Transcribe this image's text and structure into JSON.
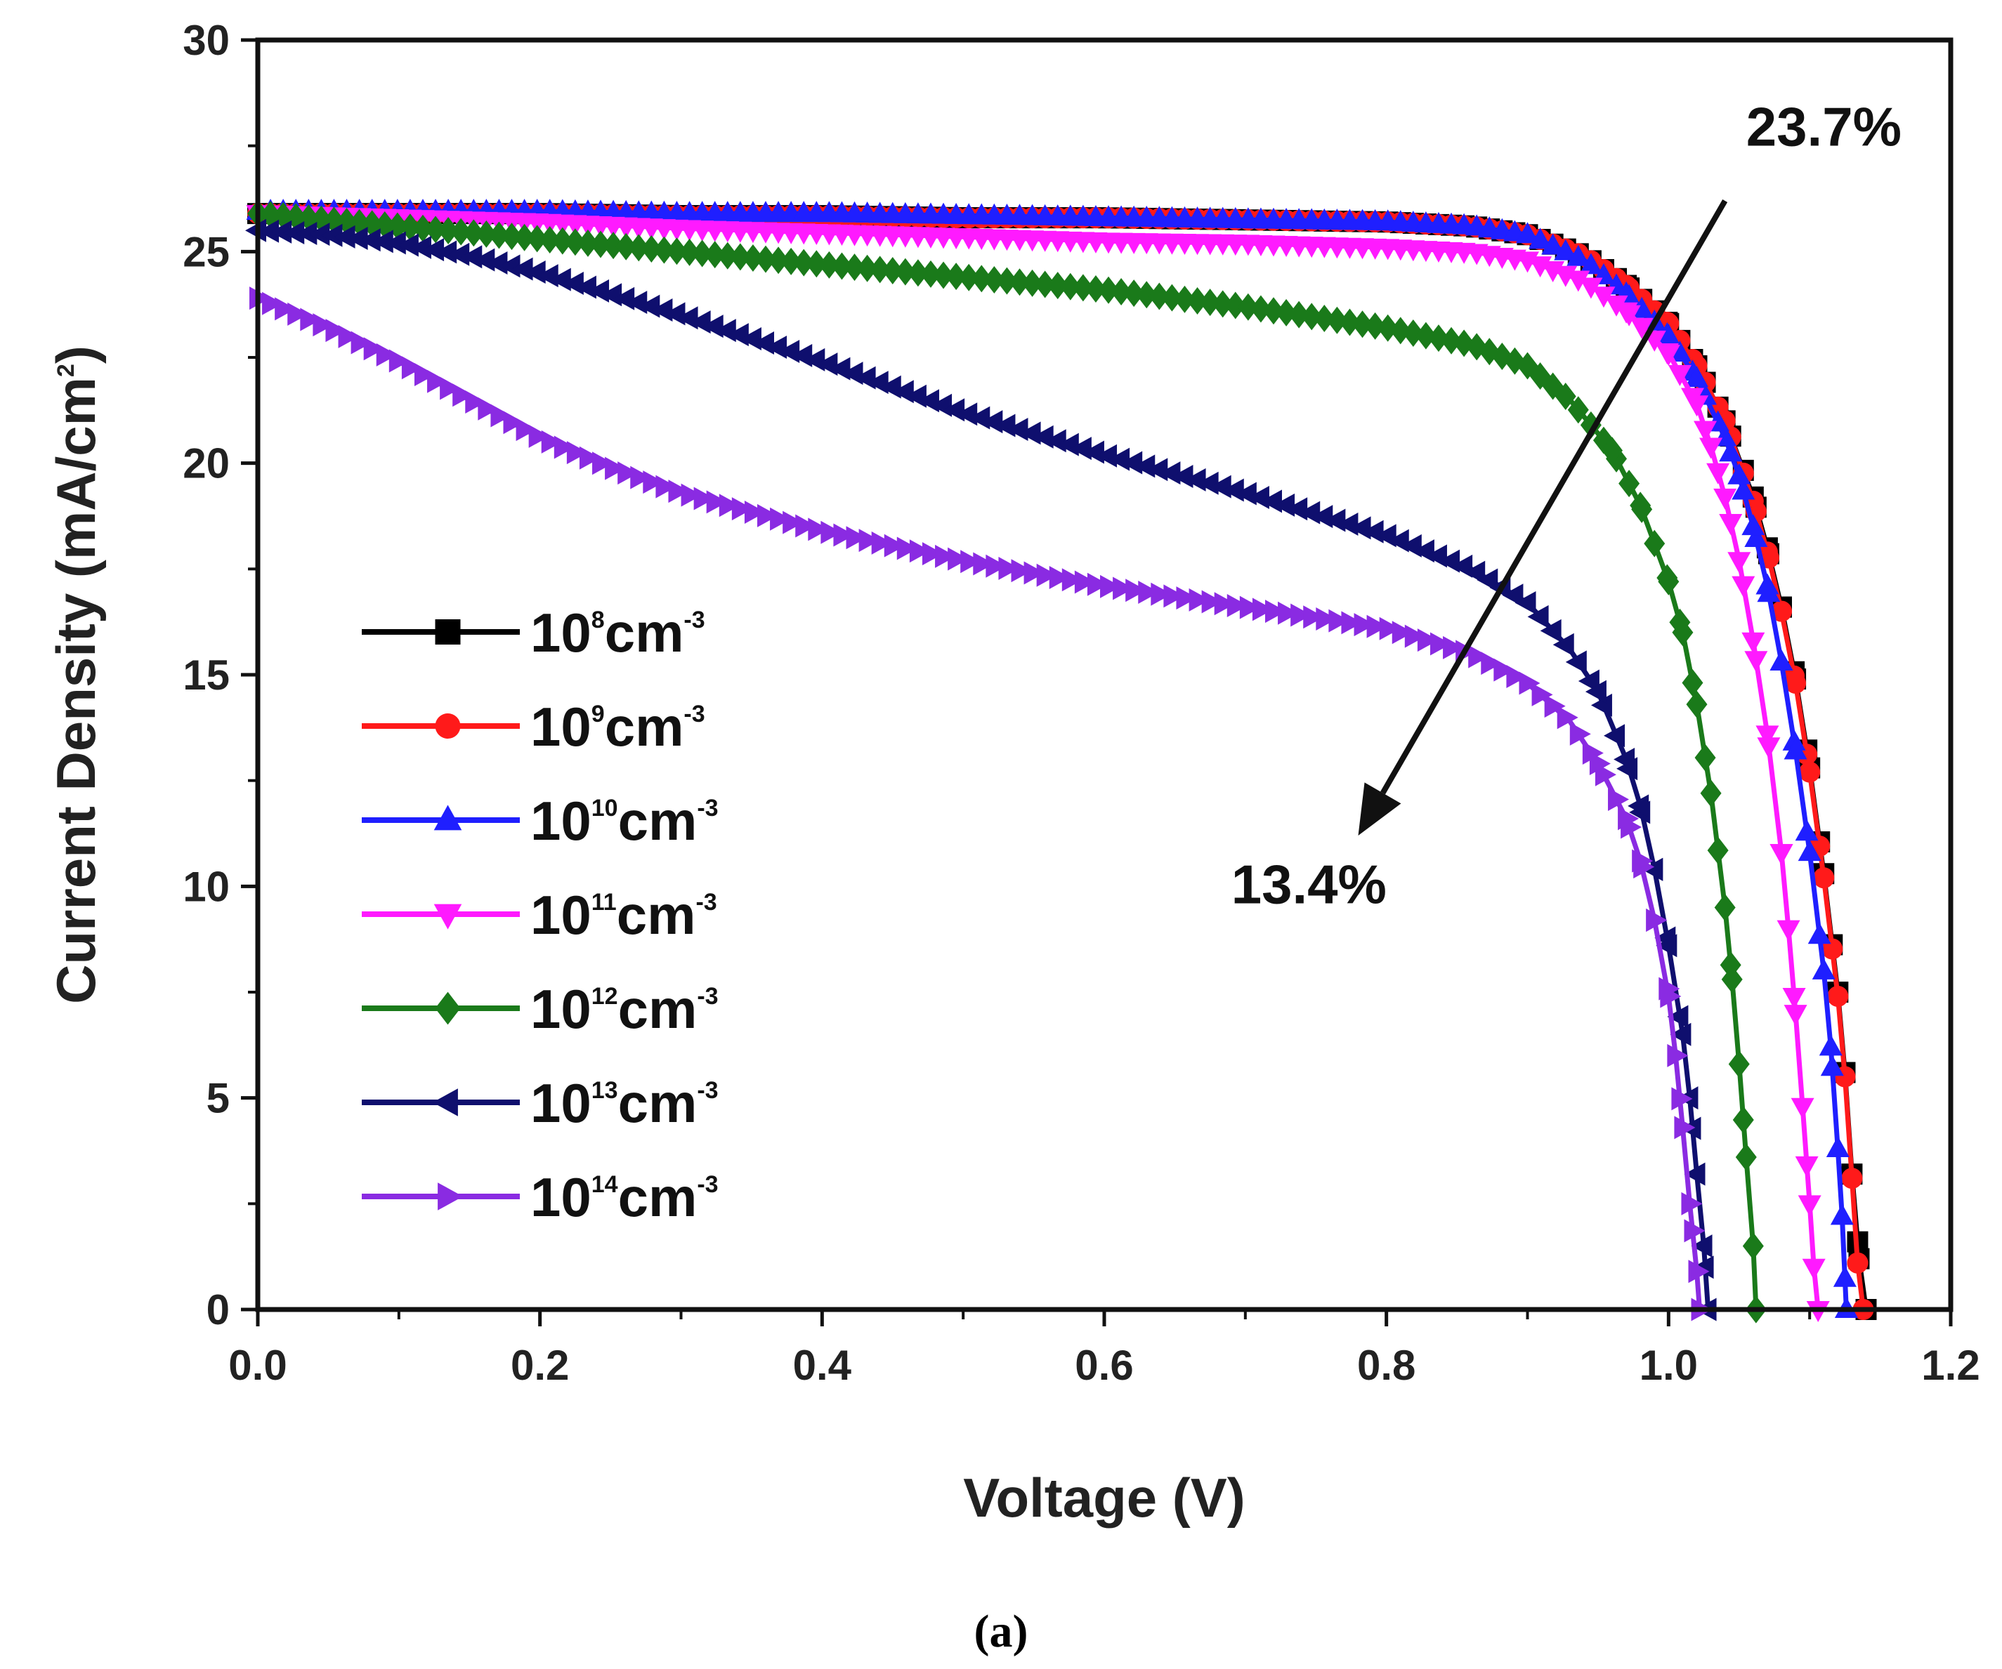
{
  "chart_data": {
    "type": "line",
    "xlabel": "Voltage (V)",
    "ylabel": "Current Density (mA/cm²)",
    "ylabel_main": "Current Density (mA/cm",
    "ylabel_sup": "2",
    "ylabel_close": ")",
    "xlim": [
      0,
      1.2
    ],
    "ylim": [
      0,
      30
    ],
    "xticks": [
      "0.0",
      "0.2",
      "0.4",
      "0.6",
      "0.8",
      "1.0",
      "1.2"
    ],
    "xtick_values": [
      0,
      0.2,
      0.4,
      0.6,
      0.8,
      1.0,
      1.2
    ],
    "yticks": [
      "0",
      "5",
      "10",
      "15",
      "20",
      "25",
      "30"
    ],
    "ytick_values": [
      0,
      5,
      10,
      15,
      20,
      25,
      30
    ],
    "grid": false,
    "legend_position": "middle-left",
    "annotations": {
      "top": "23.7%",
      "bottom": "13.4%"
    },
    "arrow": {
      "from": [
        1.04,
        26.2
      ],
      "to": [
        0.78,
        11.2
      ]
    },
    "caption": "(a)",
    "series": [
      {
        "name": "10⁸cm⁻³",
        "base": "10",
        "exp": "8",
        "unit": "cm",
        "unit_exp": "-3",
        "color": "#000000",
        "marker": "square",
        "points": [
          [
            0,
            25.9
          ],
          [
            0.1,
            25.9
          ],
          [
            0.2,
            25.9
          ],
          [
            0.3,
            25.85
          ],
          [
            0.4,
            25.85
          ],
          [
            0.5,
            25.8
          ],
          [
            0.6,
            25.8
          ],
          [
            0.7,
            25.75
          ],
          [
            0.8,
            25.7
          ],
          [
            0.86,
            25.6
          ],
          [
            0.9,
            25.4
          ],
          [
            0.94,
            24.9
          ],
          [
            0.97,
            24.2
          ],
          [
            1.0,
            23.3
          ],
          [
            1.02,
            22.3
          ],
          [
            1.04,
            21.0
          ],
          [
            1.06,
            19.2
          ],
          [
            1.07,
            18.0
          ],
          [
            1.08,
            16.6
          ],
          [
            1.09,
            14.9
          ],
          [
            1.1,
            12.8
          ],
          [
            1.11,
            10.3
          ],
          [
            1.12,
            7.5
          ],
          [
            1.125,
            5.6
          ],
          [
            1.13,
            3.2
          ],
          [
            1.135,
            1.2
          ],
          [
            1.14,
            0
          ]
        ]
      },
      {
        "name": "10⁹cm⁻³",
        "base": "10",
        "exp": "9",
        "unit": "cm",
        "unit_exp": "-3",
        "color": "#ff1a1a",
        "marker": "circle",
        "points": [
          [
            0,
            25.9
          ],
          [
            0.1,
            25.9
          ],
          [
            0.2,
            25.9
          ],
          [
            0.3,
            25.85
          ],
          [
            0.4,
            25.85
          ],
          [
            0.5,
            25.8
          ],
          [
            0.6,
            25.8
          ],
          [
            0.7,
            25.75
          ],
          [
            0.8,
            25.7
          ],
          [
            0.86,
            25.6
          ],
          [
            0.9,
            25.4
          ],
          [
            0.94,
            24.9
          ],
          [
            0.97,
            24.2
          ],
          [
            1.0,
            23.3
          ],
          [
            1.02,
            22.3
          ],
          [
            1.04,
            21.0
          ],
          [
            1.06,
            19.1
          ],
          [
            1.07,
            17.9
          ],
          [
            1.08,
            16.5
          ],
          [
            1.09,
            14.8
          ],
          [
            1.1,
            12.7
          ],
          [
            1.11,
            10.2
          ],
          [
            1.12,
            7.4
          ],
          [
            1.125,
            5.5
          ],
          [
            1.13,
            3.1
          ],
          [
            1.134,
            1.1
          ],
          [
            1.138,
            0
          ]
        ]
      },
      {
        "name": "10¹⁰cm⁻³",
        "base": "10",
        "exp": "10",
        "unit": "cm",
        "unit_exp": "-3",
        "color": "#1f1fff",
        "marker": "triangle-up",
        "points": [
          [
            0,
            25.95
          ],
          [
            0.1,
            25.95
          ],
          [
            0.2,
            25.95
          ],
          [
            0.3,
            25.9
          ],
          [
            0.4,
            25.9
          ],
          [
            0.5,
            25.85
          ],
          [
            0.6,
            25.8
          ],
          [
            0.7,
            25.75
          ],
          [
            0.8,
            25.7
          ],
          [
            0.86,
            25.6
          ],
          [
            0.9,
            25.4
          ],
          [
            0.94,
            24.8
          ],
          [
            0.97,
            24.0
          ],
          [
            1.0,
            23.0
          ],
          [
            1.02,
            22.0
          ],
          [
            1.04,
            20.6
          ],
          [
            1.05,
            19.7
          ],
          [
            1.06,
            18.5
          ],
          [
            1.07,
            17.1
          ],
          [
            1.08,
            15.3
          ],
          [
            1.09,
            13.2
          ],
          [
            1.1,
            10.8
          ],
          [
            1.11,
            8.0
          ],
          [
            1.115,
            6.2
          ],
          [
            1.12,
            3.8
          ],
          [
            1.123,
            2.2
          ],
          [
            1.126,
            0
          ]
        ]
      },
      {
        "name": "10¹¹cm⁻³",
        "base": "10",
        "exp": "11",
        "unit": "cm",
        "unit_exp": "-3",
        "color": "#ff1aff",
        "marker": "triangle-down",
        "points": [
          [
            0,
            25.9
          ],
          [
            0.1,
            25.8
          ],
          [
            0.2,
            25.7
          ],
          [
            0.3,
            25.55
          ],
          [
            0.4,
            25.45
          ],
          [
            0.5,
            25.35
          ],
          [
            0.6,
            25.25
          ],
          [
            0.7,
            25.2
          ],
          [
            0.8,
            25.1
          ],
          [
            0.86,
            25.0
          ],
          [
            0.9,
            24.8
          ],
          [
            0.94,
            24.3
          ],
          [
            0.97,
            23.6
          ],
          [
            1.0,
            22.6
          ],
          [
            1.02,
            21.4
          ],
          [
            1.03,
            20.4
          ],
          [
            1.04,
            19.2
          ],
          [
            1.05,
            17.7
          ],
          [
            1.06,
            15.8
          ],
          [
            1.07,
            13.6
          ],
          [
            1.08,
            10.8
          ],
          [
            1.085,
            9.0
          ],
          [
            1.09,
            7.0
          ],
          [
            1.095,
            4.8
          ],
          [
            1.1,
            2.5
          ],
          [
            1.103,
            1.0
          ],
          [
            1.106,
            0
          ]
        ]
      },
      {
        "name": "10¹²cm⁻³",
        "base": "10",
        "exp": "12",
        "unit": "cm",
        "unit_exp": "-3",
        "color": "#1a7a1a",
        "marker": "diamond",
        "points": [
          [
            0,
            25.9
          ],
          [
            0.1,
            25.6
          ],
          [
            0.2,
            25.3
          ],
          [
            0.3,
            25.0
          ],
          [
            0.4,
            24.7
          ],
          [
            0.5,
            24.4
          ],
          [
            0.6,
            24.1
          ],
          [
            0.7,
            23.7
          ],
          [
            0.8,
            23.2
          ],
          [
            0.86,
            22.8
          ],
          [
            0.9,
            22.3
          ],
          [
            0.93,
            21.5
          ],
          [
            0.96,
            20.3
          ],
          [
            0.98,
            19.0
          ],
          [
            1.0,
            17.2
          ],
          [
            1.01,
            16.0
          ],
          [
            1.02,
            14.3
          ],
          [
            1.03,
            12.2
          ],
          [
            1.04,
            9.5
          ],
          [
            1.045,
            7.8
          ],
          [
            1.05,
            5.8
          ],
          [
            1.055,
            3.6
          ],
          [
            1.06,
            1.5
          ],
          [
            1.062,
            0
          ]
        ]
      },
      {
        "name": "10¹³cm⁻³",
        "base": "10",
        "exp": "13",
        "unit": "cm",
        "unit_exp": "-3",
        "color": "#0f0f6e",
        "marker": "triangle-left",
        "points": [
          [
            0,
            25.5
          ],
          [
            0.05,
            25.4
          ],
          [
            0.1,
            25.2
          ],
          [
            0.15,
            24.9
          ],
          [
            0.2,
            24.5
          ],
          [
            0.3,
            23.5
          ],
          [
            0.4,
            22.4
          ],
          [
            0.5,
            21.2
          ],
          [
            0.6,
            20.2
          ],
          [
            0.7,
            19.3
          ],
          [
            0.8,
            18.3
          ],
          [
            0.86,
            17.5
          ],
          [
            0.9,
            16.7
          ],
          [
            0.93,
            15.6
          ],
          [
            0.95,
            14.6
          ],
          [
            0.97,
            13.0
          ],
          [
            0.98,
            11.9
          ],
          [
            0.99,
            10.4
          ],
          [
            1.0,
            8.6
          ],
          [
            1.01,
            6.5
          ],
          [
            1.015,
            5.0
          ],
          [
            1.02,
            3.2
          ],
          [
            1.025,
            1.5
          ],
          [
            1.028,
            0
          ]
        ]
      },
      {
        "name": "10¹⁴cm⁻³",
        "base": "10",
        "exp": "14",
        "unit": "cm",
        "unit_exp": "-3",
        "color": "#8a2be2",
        "marker": "triangle-right",
        "points": [
          [
            0,
            23.9
          ],
          [
            0.05,
            23.2
          ],
          [
            0.1,
            22.4
          ],
          [
            0.15,
            21.5
          ],
          [
            0.2,
            20.6
          ],
          [
            0.25,
            19.9
          ],
          [
            0.3,
            19.3
          ],
          [
            0.4,
            18.4
          ],
          [
            0.5,
            17.7
          ],
          [
            0.6,
            17.1
          ],
          [
            0.7,
            16.6
          ],
          [
            0.8,
            16.1
          ],
          [
            0.86,
            15.5
          ],
          [
            0.9,
            14.8
          ],
          [
            0.93,
            13.9
          ],
          [
            0.95,
            12.9
          ],
          [
            0.97,
            11.6
          ],
          [
            0.98,
            10.6
          ],
          [
            0.99,
            9.2
          ],
          [
            1.0,
            7.4
          ],
          [
            1.005,
            6.0
          ],
          [
            1.01,
            4.3
          ],
          [
            1.015,
            2.5
          ],
          [
            1.02,
            0.9
          ],
          [
            1.022,
            0
          ]
        ]
      }
    ]
  }
}
